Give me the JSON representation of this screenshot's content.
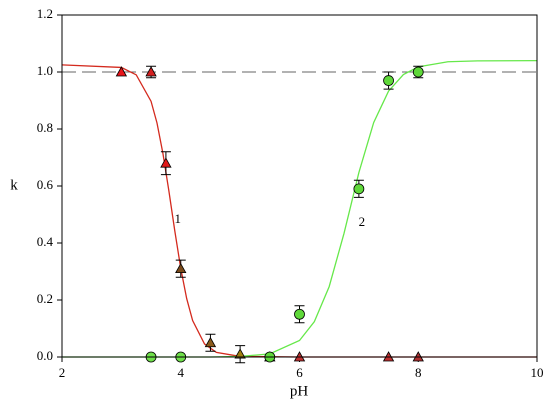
{
  "chart_data": {
    "type": "scatter",
    "x_label": "pH",
    "y_label": "k",
    "xlim": [
      2,
      10
    ],
    "xticks": [
      2,
      4,
      6,
      8,
      10
    ],
    "ylim": [
      0,
      1.2
    ],
    "yticks": [
      {
        "value": 0,
        "label": "0.0"
      },
      0.2,
      0.4,
      0.6,
      0.8,
      {
        "value": 1,
        "label": "1.0"
      },
      1.2
    ],
    "reference_line": 1,
    "series": [
      {
        "marker": "triangle",
        "color": "#e01818",
        "x": [
          3.0,
          3.5,
          3.75,
          4.0,
          4.5,
          5.0,
          5.5,
          6.0,
          7.5,
          8.0
        ],
        "values": [
          1.0,
          1.0,
          0.68,
          0.31,
          0.05,
          0.01,
          0.0,
          0.0,
          0.0,
          0.0
        ],
        "errors": [
          null,
          0.02,
          0.04,
          0.03,
          0.03,
          0.03,
          null,
          null,
          null,
          null
        ],
        "marker_colors": [
          "#e8141a",
          "#d42020",
          "#e01818",
          "#7a4a1a",
          "#8b5a1a",
          "#a08010",
          "#8a6a20",
          "#c03030",
          "#c03030",
          "#b03030"
        ]
      },
      {
        "marker": "circle",
        "color": "#5fd83a",
        "x": [
          3.5,
          4.0,
          5.5,
          6.0,
          7.0,
          7.5,
          8.0
        ],
        "values": [
          0.0,
          0.0,
          0.0,
          0.15,
          0.59,
          0.97,
          1.0
        ],
        "errors": [
          null,
          null,
          null,
          0.03,
          0.03,
          0.03,
          0.02
        ],
        "marker_colors": [
          "#6fe04a",
          "#6fe04a",
          "#5fd83a",
          "#5fd83a",
          "#5fd83a",
          "#5fd83a",
          "#5fd83a"
        ]
      }
    ],
    "curves": [
      {
        "color": "#d42a1e",
        "x": [
          2,
          3,
          3.25,
          3.5,
          3.6,
          3.7,
          3.8,
          3.9,
          4.0,
          4.1,
          4.2,
          4.4,
          4.6,
          5,
          6,
          10
        ],
        "values": [
          1.025,
          1.016,
          0.99,
          0.897,
          0.821,
          0.714,
          0.583,
          0.442,
          0.311,
          0.205,
          0.128,
          0.046,
          0.016,
          0.002,
          0,
          0
        ]
      },
      {
        "color": "#66e84a",
        "x": [
          2,
          4.5,
          5,
          5.5,
          6,
          6.25,
          6.5,
          6.75,
          7.0,
          7.25,
          7.5,
          7.75,
          8,
          8.5,
          9,
          10
        ],
        "values": [
          0,
          0,
          0.002,
          0.011,
          0.058,
          0.124,
          0.247,
          0.434,
          0.647,
          0.823,
          0.933,
          0.991,
          1.018,
          1.036,
          1.039,
          1.04
        ]
      }
    ],
    "annotations": [
      {
        "text": "1",
        "x": 3.95,
        "y": 0.48
      },
      {
        "text": "2",
        "x": 7.05,
        "y": 0.47
      }
    ]
  }
}
